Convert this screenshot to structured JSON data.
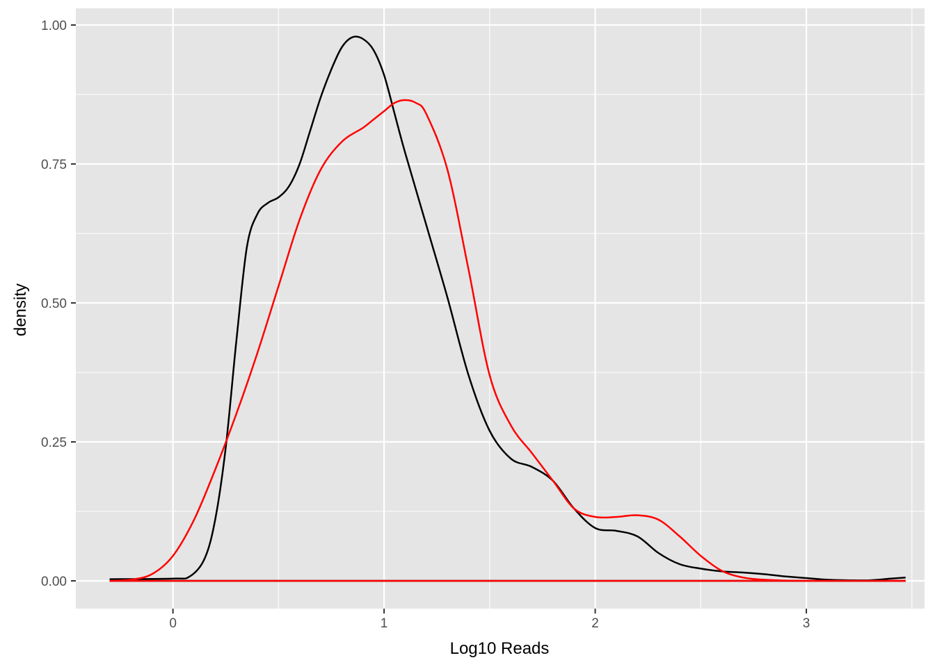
{
  "chart_data": {
    "type": "line",
    "title": "",
    "xlabel": "Log10 Reads",
    "ylabel": "density",
    "xlim": [
      -0.46,
      3.56
    ],
    "ylim": [
      -0.05,
      1.03
    ],
    "x_ticks": [
      0,
      1,
      2,
      3
    ],
    "x_tick_labels": [
      "0",
      "1",
      "2",
      "3"
    ],
    "y_ticks": [
      0,
      0.25,
      0.5,
      0.75,
      1.0
    ],
    "y_tick_labels": [
      "0.00",
      "0.25",
      "0.50",
      "0.75",
      "1.00"
    ],
    "grid": true,
    "panel_background": "#e5e5e5",
    "grid_color": "#ffffff",
    "series": [
      {
        "color": "#000000",
        "x": [
          -0.3,
          0.0,
          0.08,
          0.15,
          0.2,
          0.25,
          0.3,
          0.35,
          0.4,
          0.45,
          0.5,
          0.55,
          0.6,
          0.65,
          0.7,
          0.75,
          0.8,
          0.85,
          0.9,
          0.95,
          1.0,
          1.05,
          1.1,
          1.2,
          1.3,
          1.4,
          1.5,
          1.6,
          1.7,
          1.8,
          1.9,
          2.0,
          2.1,
          2.2,
          2.3,
          2.4,
          2.5,
          2.6,
          2.7,
          2.8,
          2.9,
          3.0,
          3.1,
          3.2,
          3.3,
          3.4,
          3.47
        ],
        "y": [
          0.003,
          0.004,
          0.008,
          0.04,
          0.11,
          0.24,
          0.43,
          0.6,
          0.66,
          0.68,
          0.69,
          0.71,
          0.75,
          0.81,
          0.87,
          0.92,
          0.96,
          0.978,
          0.975,
          0.955,
          0.91,
          0.84,
          0.77,
          0.64,
          0.51,
          0.37,
          0.27,
          0.22,
          0.205,
          0.18,
          0.13,
          0.095,
          0.09,
          0.08,
          0.05,
          0.03,
          0.022,
          0.017,
          0.015,
          0.012,
          0.008,
          0.005,
          0.002,
          0.001,
          0.001,
          0.004,
          0.006
        ]
      },
      {
        "color": "#ff0000",
        "x": [
          -0.3,
          -0.2,
          -0.1,
          0.0,
          0.1,
          0.2,
          0.3,
          0.4,
          0.5,
          0.6,
          0.7,
          0.8,
          0.9,
          0.95,
          1.0,
          1.05,
          1.1,
          1.15,
          1.2,
          1.3,
          1.4,
          1.5,
          1.6,
          1.7,
          1.8,
          1.9,
          2.0,
          2.1,
          2.2,
          2.3,
          2.4,
          2.5,
          2.6,
          2.7,
          2.8,
          2.9,
          3.0,
          3.1,
          3.2,
          3.3,
          3.47
        ],
        "y": [
          0.0,
          0.002,
          0.012,
          0.045,
          0.11,
          0.2,
          0.3,
          0.41,
          0.53,
          0.65,
          0.74,
          0.79,
          0.815,
          0.83,
          0.845,
          0.86,
          0.865,
          0.86,
          0.84,
          0.74,
          0.56,
          0.37,
          0.28,
          0.23,
          0.18,
          0.13,
          0.115,
          0.115,
          0.118,
          0.11,
          0.08,
          0.045,
          0.018,
          0.006,
          0.002,
          0.0005,
          0.0,
          0.0,
          0.0,
          0.0,
          0.0
        ]
      }
    ]
  }
}
